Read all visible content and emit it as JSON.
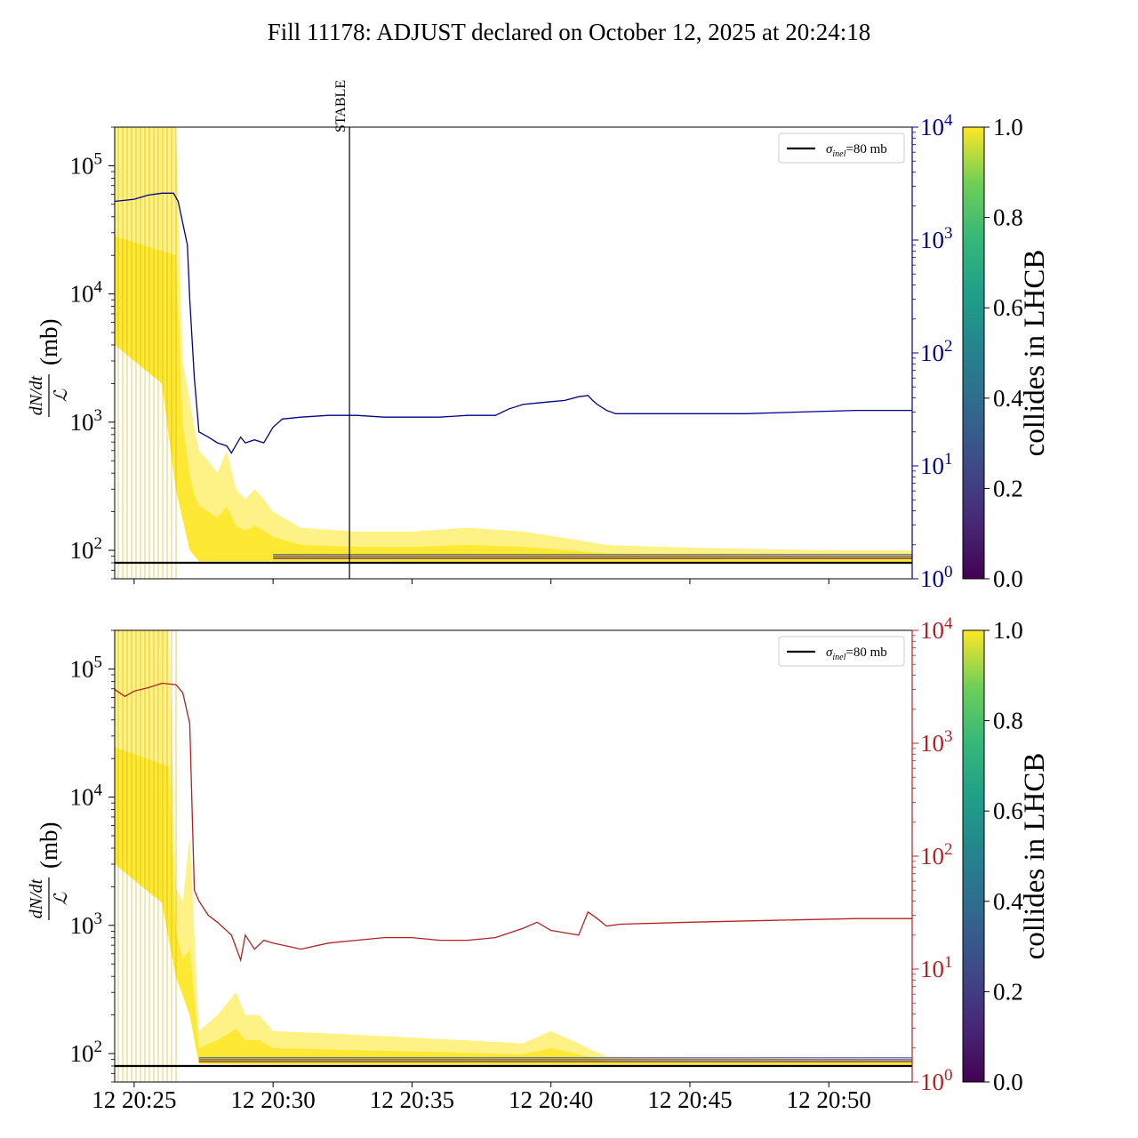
{
  "title": "Fill 11178: ADJUST declared on October 12, 2025 at 20:24:18",
  "colors": {
    "top_right_axis": "#00008b",
    "bottom_right_axis": "#b22222",
    "reference_line": "#000000",
    "collides_high": "#fde725",
    "collides_low": "#440154"
  },
  "chart_data": [
    {
      "type": "line",
      "panel": "top",
      "ylabel": "dN/dt / ℒ (mb)",
      "ylabel_parts": {
        "numerator": "dN/dt",
        "denominator": "ℒ",
        "unit": "(mb)"
      },
      "yscale": "log",
      "ylim": [
        60,
        200000
      ],
      "y_ticks": [
        {
          "value": 100,
          "label_base": "10",
          "label_exp": "2"
        },
        {
          "value": 1000,
          "label_base": "10",
          "label_exp": "3"
        },
        {
          "value": 10000,
          "label_base": "10",
          "label_exp": "4"
        },
        {
          "value": 100000,
          "label_base": "10",
          "label_exp": "5"
        }
      ],
      "xlim": [
        "20:24:18",
        "20:53:00"
      ],
      "x_ticks": [],
      "right_axis": {
        "scale": "log",
        "ylim": [
          1,
          10000
        ],
        "color": "#00008b",
        "ticks": [
          {
            "value": 1,
            "label_base": "10",
            "label_exp": "0"
          },
          {
            "value": 10,
            "label_base": "10",
            "label_exp": "1"
          },
          {
            "value": 100,
            "label_base": "10",
            "label_exp": "2"
          },
          {
            "value": 1000,
            "label_base": "10",
            "label_exp": "3"
          },
          {
            "value": 10000,
            "label_base": "10",
            "label_exp": "4"
          }
        ]
      },
      "vline": {
        "x": "20:32:45",
        "label": "STABLE"
      },
      "legend": {
        "position": "top-right",
        "label_symbol": "σ",
        "label_sub": "inel",
        "label_rest": "=80 mb"
      },
      "reference_line": {
        "y": 80
      },
      "series": [
        {
          "axis": "right",
          "color": "#00008b",
          "x": [
            "20:24:18",
            "20:25:00",
            "20:25:30",
            "20:26:00",
            "20:26:25",
            "20:26:35",
            "20:26:55",
            "20:27:00",
            "20:27:10",
            "20:27:20",
            "20:27:40",
            "20:28:00",
            "20:28:20",
            "20:28:30",
            "20:28:50",
            "20:29:00",
            "20:29:20",
            "20:29:40",
            "20:30:00",
            "20:30:20",
            "20:31:00",
            "20:32:00",
            "20:33:00",
            "20:34:00",
            "20:35:00",
            "20:36:00",
            "20:37:00",
            "20:38:00",
            "20:38:30",
            "20:39:00",
            "20:39:30",
            "20:40:00",
            "20:40:30",
            "20:41:00",
            "20:41:20",
            "20:41:30",
            "20:41:40",
            "20:42:00",
            "20:42:20",
            "20:43:00",
            "20:45:00",
            "20:47:00",
            "20:49:00",
            "20:51:00",
            "20:53:00"
          ],
          "y": [
            2200,
            2300,
            2500,
            2600,
            2600,
            2200,
            900,
            300,
            60,
            20,
            18,
            16,
            15,
            13,
            18,
            16,
            17,
            16,
            22,
            26,
            27,
            28,
            28,
            27,
            27,
            27,
            28,
            28,
            32,
            35,
            36,
            37,
            38,
            41,
            42,
            38,
            35,
            31,
            29,
            29,
            29,
            29,
            30,
            31,
            31
          ]
        }
      ],
      "bands": {
        "colorbar_label": "collides in LHCB",
        "colorbar_ticks": [
          "0.0",
          "0.2",
          "0.4",
          "0.6",
          "0.8",
          "1.0"
        ],
        "upper_envelope": {
          "x": [
            "20:24:18",
            "20:26:30",
            "20:26:45",
            "20:27:00",
            "20:27:10",
            "20:27:20",
            "20:27:40",
            "20:28:00",
            "20:28:20",
            "20:28:40",
            "20:29:00",
            "20:29:20",
            "20:29:40",
            "20:30:00",
            "20:31:00",
            "20:33:00",
            "20:35:00",
            "20:37:00",
            "20:39:00",
            "20:40:00",
            "20:41:00",
            "20:42:00",
            "20:45:00",
            "20:50:00",
            "20:53:00"
          ],
          "y": [
            200000,
            200000,
            3000,
            1500,
            900,
            600,
            500,
            400,
            600,
            300,
            250,
            300,
            250,
            200,
            150,
            140,
            140,
            150,
            140,
            130,
            120,
            110,
            105,
            100,
            100
          ]
        },
        "lower_envelope": {
          "x": [
            "20:24:18",
            "20:26:00",
            "20:26:30",
            "20:27:00",
            "20:27:20",
            "20:30:00",
            "20:40:00",
            "20:53:00"
          ],
          "y": [
            4000,
            2000,
            300,
            100,
            82,
            82,
            81,
            81
          ]
        }
      }
    },
    {
      "type": "line",
      "panel": "bottom",
      "ylabel": "dN/dt / ℒ (mb)",
      "ylabel_parts": {
        "numerator": "dN/dt",
        "denominator": "ℒ",
        "unit": "(mb)"
      },
      "yscale": "log",
      "ylim": [
        60,
        200000
      ],
      "y_ticks": [
        {
          "value": 100,
          "label_base": "10",
          "label_exp": "2"
        },
        {
          "value": 1000,
          "label_base": "10",
          "label_exp": "3"
        },
        {
          "value": 10000,
          "label_base": "10",
          "label_exp": "4"
        },
        {
          "value": 100000,
          "label_base": "10",
          "label_exp": "5"
        }
      ],
      "xlim": [
        "20:24:18",
        "20:53:00"
      ],
      "x_ticks": [
        {
          "value": "20:25:00",
          "label": "12 20:25"
        },
        {
          "value": "20:30:00",
          "label": "12 20:30"
        },
        {
          "value": "20:35:00",
          "label": "12 20:35"
        },
        {
          "value": "20:40:00",
          "label": "12 20:40"
        },
        {
          "value": "20:45:00",
          "label": "12 20:45"
        },
        {
          "value": "20:50:00",
          "label": "12 20:50"
        }
      ],
      "right_axis": {
        "scale": "log",
        "ylim": [
          1,
          10000
        ],
        "color": "#b22222",
        "ticks": [
          {
            "value": 1,
            "label_base": "10",
            "label_exp": "0"
          },
          {
            "value": 10,
            "label_base": "10",
            "label_exp": "1"
          },
          {
            "value": 100,
            "label_base": "10",
            "label_exp": "2"
          },
          {
            "value": 1000,
            "label_base": "10",
            "label_exp": "3"
          },
          {
            "value": 10000,
            "label_base": "10",
            "label_exp": "4"
          }
        ]
      },
      "legend": {
        "position": "top-right",
        "label_symbol": "σ",
        "label_sub": "inel",
        "label_rest": "=80 mb"
      },
      "reference_line": {
        "y": 80
      },
      "series": [
        {
          "axis": "right",
          "color": "#b22222",
          "x": [
            "20:24:18",
            "20:24:40",
            "20:25:00",
            "20:25:30",
            "20:26:00",
            "20:26:30",
            "20:26:45",
            "20:27:00",
            "20:27:10",
            "20:27:20",
            "20:27:40",
            "20:28:00",
            "20:28:30",
            "20:28:50",
            "20:29:00",
            "20:29:20",
            "20:29:40",
            "20:30:00",
            "20:30:30",
            "20:31:00",
            "20:32:00",
            "20:33:00",
            "20:34:00",
            "20:35:00",
            "20:36:00",
            "20:37:00",
            "20:38:00",
            "20:39:00",
            "20:39:30",
            "20:40:00",
            "20:40:30",
            "20:41:00",
            "20:41:20",
            "20:41:40",
            "20:42:00",
            "20:42:30",
            "20:45:00",
            "20:48:00",
            "20:51:00",
            "20:53:00"
          ],
          "y": [
            3000,
            2600,
            2900,
            3100,
            3400,
            3300,
            2800,
            1500,
            50,
            40,
            30,
            26,
            20,
            12,
            20,
            15,
            18,
            17,
            16,
            15,
            17,
            18,
            19,
            19,
            18,
            18,
            19,
            23,
            26,
            22,
            21,
            20,
            32,
            28,
            24,
            25,
            26,
            27,
            28,
            28
          ]
        }
      ],
      "bands": {
        "colorbar_label": "collides in LHCB",
        "colorbar_ticks": [
          "0.0",
          "0.2",
          "0.4",
          "0.6",
          "0.8",
          "1.0"
        ],
        "upper_envelope": {
          "x": [
            "20:24:18",
            "20:26:15",
            "20:26:30",
            "20:26:45",
            "20:27:00",
            "20:27:20",
            "20:28:00",
            "20:28:40",
            "20:29:00",
            "20:29:30",
            "20:30:00",
            "20:33:00",
            "20:36:00",
            "20:39:00",
            "20:40:00",
            "20:41:00",
            "20:41:20",
            "20:42:00",
            "20:45:00",
            "20:53:00"
          ],
          "y": [
            200000,
            200000,
            2000,
            1500,
            5000,
            150,
            200,
            300,
            200,
            200,
            150,
            140,
            130,
            120,
            150,
            120,
            110,
            95,
            92,
            90
          ]
        },
        "lower_envelope": {
          "x": [
            "20:24:18",
            "20:26:00",
            "20:26:30",
            "20:27:00",
            "20:27:20",
            "20:30:00",
            "20:53:00"
          ],
          "y": [
            3000,
            1500,
            400,
            200,
            83,
            82,
            81
          ]
        }
      }
    }
  ]
}
